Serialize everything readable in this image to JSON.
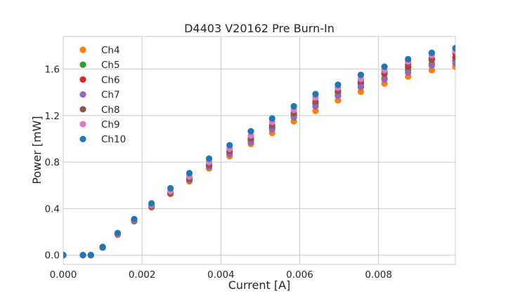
{
  "chart_data": {
    "type": "scatter",
    "title": "D4403 V20162 Pre Burn-In",
    "xlabel": "Current [A]",
    "ylabel": "Power [mW]",
    "xlim": [
      0,
      0.00995
    ],
    "ylim": [
      -0.08,
      1.88
    ],
    "x_ticks": [
      0,
      0.002,
      0.004,
      0.006,
      0.008
    ],
    "x_tick_labels": [
      "0.000",
      "0.002",
      "0.004",
      "0.006",
      "0.008"
    ],
    "y_ticks": [
      0,
      0.4,
      0.8,
      1.2,
      1.6
    ],
    "y_tick_labels": [
      "0.0",
      "0.4",
      "0.8",
      "1.2",
      "1.6"
    ],
    "grid": true,
    "legend_position": "upper-left",
    "series": [
      {
        "name": "Ch4",
        "color": "#ff7f0e",
        "x": [
          0,
          0.0005,
          0.0007,
          0.001,
          0.00138,
          0.0018,
          0.00224,
          0.00272,
          0.0032,
          0.0037,
          0.00422,
          0.00476,
          0.0053,
          0.00585,
          0.0064,
          0.00697,
          0.00755,
          0.00815,
          0.00875,
          0.00935,
          0.00995
        ],
        "y": [
          0,
          0,
          0,
          0.065,
          0.175,
          0.29,
          0.41,
          0.525,
          0.635,
          0.745,
          0.85,
          0.955,
          1.05,
          1.15,
          1.24,
          1.33,
          1.405,
          1.475,
          1.535,
          1.59,
          1.62
        ]
      },
      {
        "name": "Ch5",
        "color": "#2ca02c",
        "x": [
          0,
          0.0005,
          0.0007,
          0.001,
          0.00138,
          0.0018,
          0.00224,
          0.00272,
          0.0032,
          0.0037,
          0.00422,
          0.00476,
          0.0053,
          0.00585,
          0.0064,
          0.00697,
          0.00755,
          0.00815,
          0.00875,
          0.00935,
          0.00995
        ],
        "y": [
          0,
          0,
          0,
          0.065,
          0.18,
          0.295,
          0.415,
          0.53,
          0.645,
          0.76,
          0.87,
          0.985,
          1.085,
          1.185,
          1.28,
          1.37,
          1.455,
          1.52,
          1.59,
          1.645,
          1.67
        ]
      },
      {
        "name": "Ch6",
        "color": "#d62728",
        "x": [
          0,
          0.0005,
          0.0007,
          0.001,
          0.00138,
          0.0018,
          0.00224,
          0.00272,
          0.0032,
          0.0037,
          0.00422,
          0.00476,
          0.0053,
          0.00585,
          0.0064,
          0.00697,
          0.00755,
          0.00815,
          0.00875,
          0.00935,
          0.00995
        ],
        "y": [
          0,
          0,
          0,
          0.07,
          0.18,
          0.3,
          0.42,
          0.54,
          0.655,
          0.77,
          0.885,
          0.99,
          1.1,
          1.205,
          1.305,
          1.4,
          1.48,
          1.56,
          1.62,
          1.68,
          1.7
        ]
      },
      {
        "name": "Ch7",
        "color": "#9467bd",
        "x": [
          0,
          0.0005,
          0.0007,
          0.001,
          0.00138,
          0.0018,
          0.00224,
          0.00272,
          0.0032,
          0.0037,
          0.00422,
          0.00476,
          0.0053,
          0.00585,
          0.0064,
          0.00697,
          0.00755,
          0.00815,
          0.00875,
          0.00935,
          0.00995
        ],
        "y": [
          0,
          0,
          0,
          0.065,
          0.18,
          0.295,
          0.415,
          0.53,
          0.645,
          0.76,
          0.87,
          0.97,
          1.08,
          1.19,
          1.28,
          1.37,
          1.445,
          1.51,
          1.57,
          1.63,
          1.65
        ]
      },
      {
        "name": "Ch8",
        "color": "#8c564b",
        "x": [
          0,
          0.0005,
          0.0007,
          0.001,
          0.00138,
          0.0018,
          0.00224,
          0.00272,
          0.0032,
          0.0037,
          0.00422,
          0.00476,
          0.0053,
          0.00585,
          0.0064,
          0.00697,
          0.00755,
          0.00815,
          0.00875,
          0.00935,
          0.00995
        ],
        "y": [
          0,
          0,
          0,
          0.068,
          0.182,
          0.3,
          0.42,
          0.535,
          0.655,
          0.775,
          0.895,
          1.005,
          1.115,
          1.22,
          1.32,
          1.41,
          1.5,
          1.575,
          1.64,
          1.69,
          1.735
        ]
      },
      {
        "name": "Ch9",
        "color": "#e377c2",
        "x": [
          0,
          0.0005,
          0.0007,
          0.001,
          0.00138,
          0.0018,
          0.00224,
          0.00272,
          0.0032,
          0.0037,
          0.00422,
          0.00476,
          0.0053,
          0.00585,
          0.0064,
          0.00697,
          0.00755,
          0.00815,
          0.00875,
          0.00935,
          0.00995
        ],
        "y": [
          0,
          0,
          0,
          0.07,
          0.185,
          0.305,
          0.43,
          0.55,
          0.675,
          0.8,
          0.915,
          1.03,
          1.145,
          1.25,
          1.355,
          1.44,
          1.515,
          1.59,
          1.665,
          1.72,
          1.755
        ]
      },
      {
        "name": "Ch10",
        "color": "#1f77b4",
        "x": [
          0,
          0.0005,
          0.0007,
          0.001,
          0.00138,
          0.0018,
          0.00224,
          0.00272,
          0.0032,
          0.0037,
          0.00422,
          0.00476,
          0.0053,
          0.00585,
          0.0064,
          0.00697,
          0.00755,
          0.00815,
          0.00875,
          0.00935,
          0.00995
        ],
        "y": [
          0,
          0,
          0,
          0.07,
          0.19,
          0.31,
          0.445,
          0.575,
          0.705,
          0.83,
          0.945,
          1.065,
          1.175,
          1.28,
          1.385,
          1.465,
          1.55,
          1.62,
          1.685,
          1.74,
          1.78
        ]
      }
    ]
  }
}
